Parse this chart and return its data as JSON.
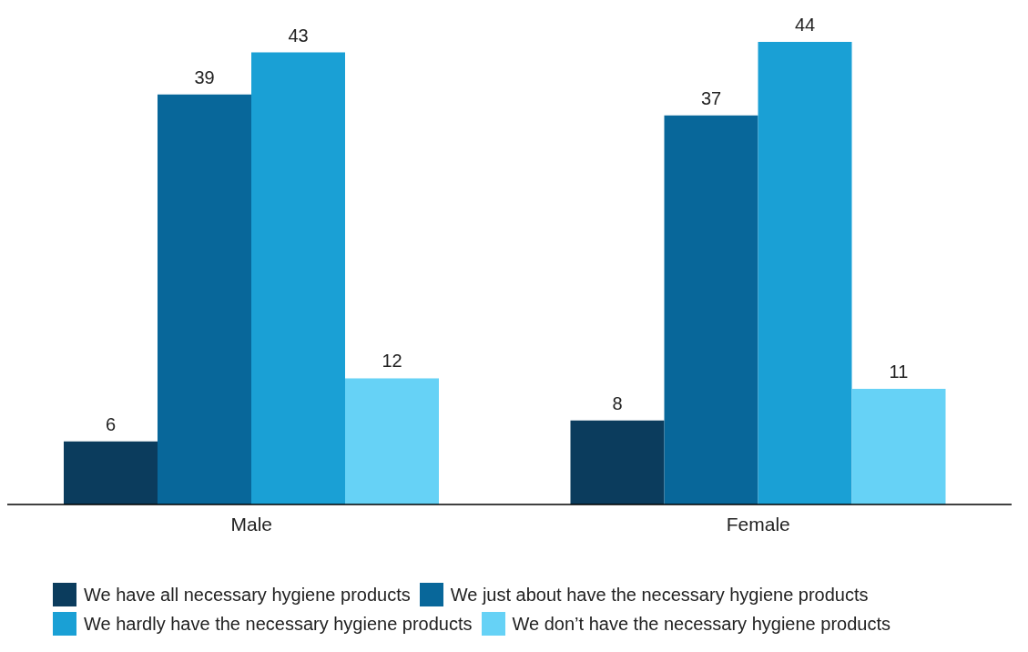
{
  "chart_data": {
    "type": "bar",
    "categories": [
      "Male",
      "Female"
    ],
    "series": [
      {
        "name": "We have all necessary hygiene products",
        "color": "#0b3c5d",
        "values": [
          6,
          8
        ]
      },
      {
        "name": "We just about have the necessary hygiene products",
        "color": "#08679a",
        "values": [
          39,
          37
        ]
      },
      {
        "name": "We hardly have the necessary hygiene products",
        "color": "#1aa0d5",
        "values": [
          43,
          44
        ]
      },
      {
        "name": "We don’t have the necessary hygiene products",
        "color": "#66d2f6",
        "values": [
          12,
          11
        ]
      }
    ],
    "data_labels": true,
    "legend": "bottom",
    "grid": false
  }
}
